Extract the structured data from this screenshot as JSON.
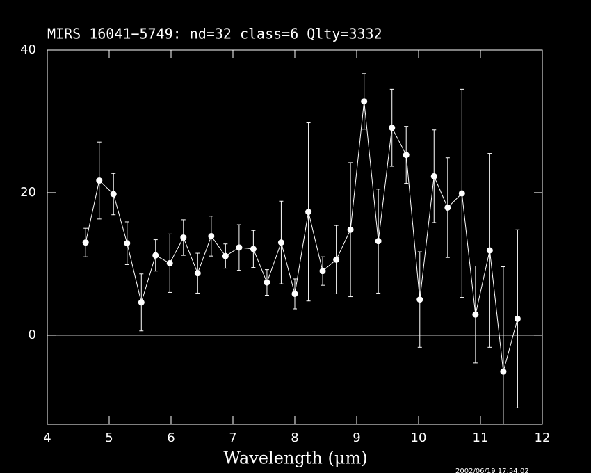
{
  "chart_data": {
    "type": "errorbar_line",
    "title": "MIRS 16041−5749:    nd=32    class=6    Qlty=3332",
    "x_label": "Wavelength (μm)",
    "timestamp": "2002/06/19 17:54:02",
    "xlim": [
      4,
      12
    ],
    "ylim": [
      -12.5,
      40
    ],
    "xticks": [
      4,
      5,
      6,
      7,
      8,
      9,
      10,
      11,
      12
    ],
    "yticks": [
      0,
      20,
      40
    ],
    "zero_line": true,
    "series": [
      {
        "color": "#ffffff",
        "x": [
          4.62,
          4.84,
          5.07,
          5.29,
          5.52,
          5.75,
          5.98,
          6.2,
          6.43,
          6.65,
          6.88,
          7.1,
          7.33,
          7.55,
          7.78,
          8.0,
          8.22,
          8.45,
          8.67,
          8.9,
          9.12,
          9.35,
          9.57,
          9.8,
          10.02,
          10.25,
          10.47,
          10.7,
          10.92,
          11.15,
          11.37,
          11.6
        ],
        "values": [
          13.0,
          21.7,
          19.8,
          12.9,
          4.6,
          11.2,
          10.1,
          13.7,
          8.7,
          13.9,
          11.1,
          12.3,
          12.1,
          7.4,
          13.0,
          5.8,
          17.3,
          9.0,
          10.6,
          14.8,
          32.8,
          13.2,
          29.1,
          25.3,
          5.0,
          22.3,
          17.9,
          19.9,
          2.9,
          11.9,
          -5.1,
          2.3
        ],
        "errors": [
          2.0,
          5.4,
          2.9,
          3.0,
          4.0,
          2.2,
          4.1,
          2.5,
          2.8,
          2.8,
          1.7,
          3.2,
          2.6,
          1.8,
          5.8,
          2.1,
          12.5,
          2.0,
          4.8,
          9.4,
          3.9,
          7.3,
          5.4,
          4.0,
          6.7,
          6.5,
          7.0,
          14.6,
          6.8,
          13.6,
          14.7,
          12.5
        ]
      }
    ]
  }
}
